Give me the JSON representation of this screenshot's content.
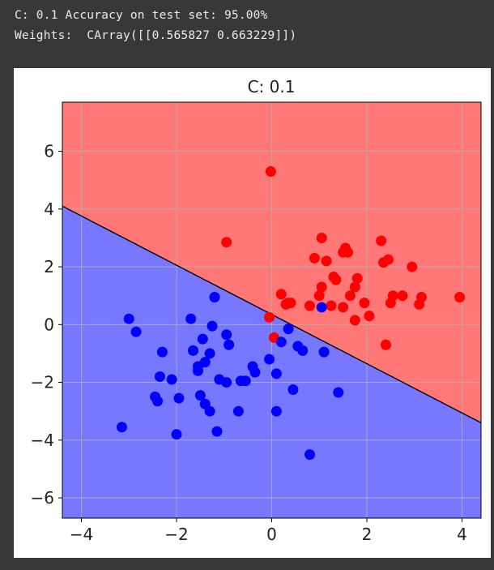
{
  "console": {
    "line1": "C: 0.1 Accuracy on test set: 95.00%",
    "line2": "Weights:  CArray([[0.565827 0.663229]])"
  },
  "colors": {
    "background": "#383838",
    "region_red": "#ff7777",
    "region_blue": "#7777ff",
    "point_red": "#ff0000",
    "point_blue": "#0000ff",
    "boundary": "#000000"
  },
  "chart_data": {
    "type": "scatter",
    "title": "C: 0.1",
    "xlim": [
      -4.4,
      4.4
    ],
    "ylim": [
      -6.7,
      7.7
    ],
    "xticks": [
      -4,
      -2,
      0,
      2,
      4
    ],
    "xtick_labels": [
      "−4",
      "−2",
      "0",
      "2",
      "4"
    ],
    "yticks": [
      -6,
      -4,
      -2,
      0,
      2,
      4,
      6
    ],
    "ytick_labels": [
      "−6",
      "−4",
      "−2",
      "0",
      "2",
      "4",
      "6"
    ],
    "grid": true,
    "decision_boundary": {
      "weights": [
        0.565827,
        0.663229
      ],
      "points": [
        [
          -4.4,
          4.1
        ],
        [
          4.4,
          -3.4
        ]
      ]
    },
    "regions": [
      {
        "label": "red",
        "side": "above boundary"
      },
      {
        "label": "blue",
        "side": "below boundary"
      }
    ],
    "series": [
      {
        "color": "red",
        "points": [
          [
            -0.02,
            5.3
          ],
          [
            -0.95,
            2.85
          ],
          [
            1.05,
            3.0
          ],
          [
            1.55,
            2.65
          ],
          [
            1.6,
            2.5
          ],
          [
            1.5,
            2.5
          ],
          [
            2.3,
            2.9
          ],
          [
            2.35,
            2.15
          ],
          [
            2.45,
            2.25
          ],
          [
            0.9,
            2.3
          ],
          [
            1.15,
            2.2
          ],
          [
            2.95,
            2.0
          ],
          [
            1.3,
            1.65
          ],
          [
            1.35,
            1.55
          ],
          [
            1.05,
            1.3
          ],
          [
            1.8,
            1.6
          ],
          [
            1.75,
            1.3
          ],
          [
            1.65,
            1.0
          ],
          [
            1.0,
            1.0
          ],
          [
            0.2,
            1.05
          ],
          [
            2.55,
            1.0
          ],
          [
            2.75,
            1.0
          ],
          [
            3.15,
            0.95
          ],
          [
            0.35,
            0.75
          ],
          [
            0.4,
            0.75
          ],
          [
            0.3,
            0.7
          ],
          [
            2.5,
            0.75
          ],
          [
            3.1,
            0.7
          ],
          [
            0.8,
            0.65
          ],
          [
            1.5,
            0.6
          ],
          [
            1.95,
            0.75
          ],
          [
            2.05,
            0.3
          ],
          [
            1.75,
            0.15
          ],
          [
            -0.05,
            0.25
          ],
          [
            3.95,
            0.95
          ],
          [
            2.4,
            -0.7
          ],
          [
            0.05,
            -0.45
          ],
          [
            1.25,
            0.65
          ]
        ]
      },
      {
        "color": "blue",
        "points": [
          [
            1.05,
            0.6
          ],
          [
            -1.2,
            0.95
          ],
          [
            -3.0,
            0.2
          ],
          [
            -1.7,
            0.2
          ],
          [
            -2.85,
            -0.25
          ],
          [
            -1.25,
            -0.05
          ],
          [
            -0.95,
            -0.35
          ],
          [
            0.35,
            -0.15
          ],
          [
            -1.45,
            -0.5
          ],
          [
            -0.9,
            -0.7
          ],
          [
            0.2,
            -0.6
          ],
          [
            0.55,
            -0.75
          ],
          [
            0.65,
            -0.9
          ],
          [
            -2.3,
            -0.95
          ],
          [
            -1.65,
            -0.9
          ],
          [
            -1.3,
            -1.0
          ],
          [
            1.1,
            -0.95
          ],
          [
            -0.05,
            -1.2
          ],
          [
            -1.4,
            -1.3
          ],
          [
            -1.55,
            -1.45
          ],
          [
            -0.4,
            -1.45
          ],
          [
            -0.35,
            -1.65
          ],
          [
            -1.55,
            -1.6
          ],
          [
            0.1,
            -1.7
          ],
          [
            -2.35,
            -1.8
          ],
          [
            -2.1,
            -1.9
          ],
          [
            -1.1,
            -1.9
          ],
          [
            -0.65,
            -1.95
          ],
          [
            -0.95,
            -2.0
          ],
          [
            -0.55,
            -1.95
          ],
          [
            0.45,
            -2.25
          ],
          [
            1.4,
            -2.35
          ],
          [
            -1.5,
            -2.45
          ],
          [
            -2.45,
            -2.5
          ],
          [
            -2.4,
            -2.65
          ],
          [
            -1.95,
            -2.55
          ],
          [
            -1.4,
            -2.75
          ],
          [
            -1.3,
            -3.0
          ],
          [
            -0.7,
            -3.0
          ],
          [
            0.1,
            -3.0
          ],
          [
            -3.15,
            -3.55
          ],
          [
            -1.15,
            -3.7
          ],
          [
            -2.0,
            -3.8
          ],
          [
            0.8,
            -4.5
          ]
        ]
      }
    ]
  }
}
